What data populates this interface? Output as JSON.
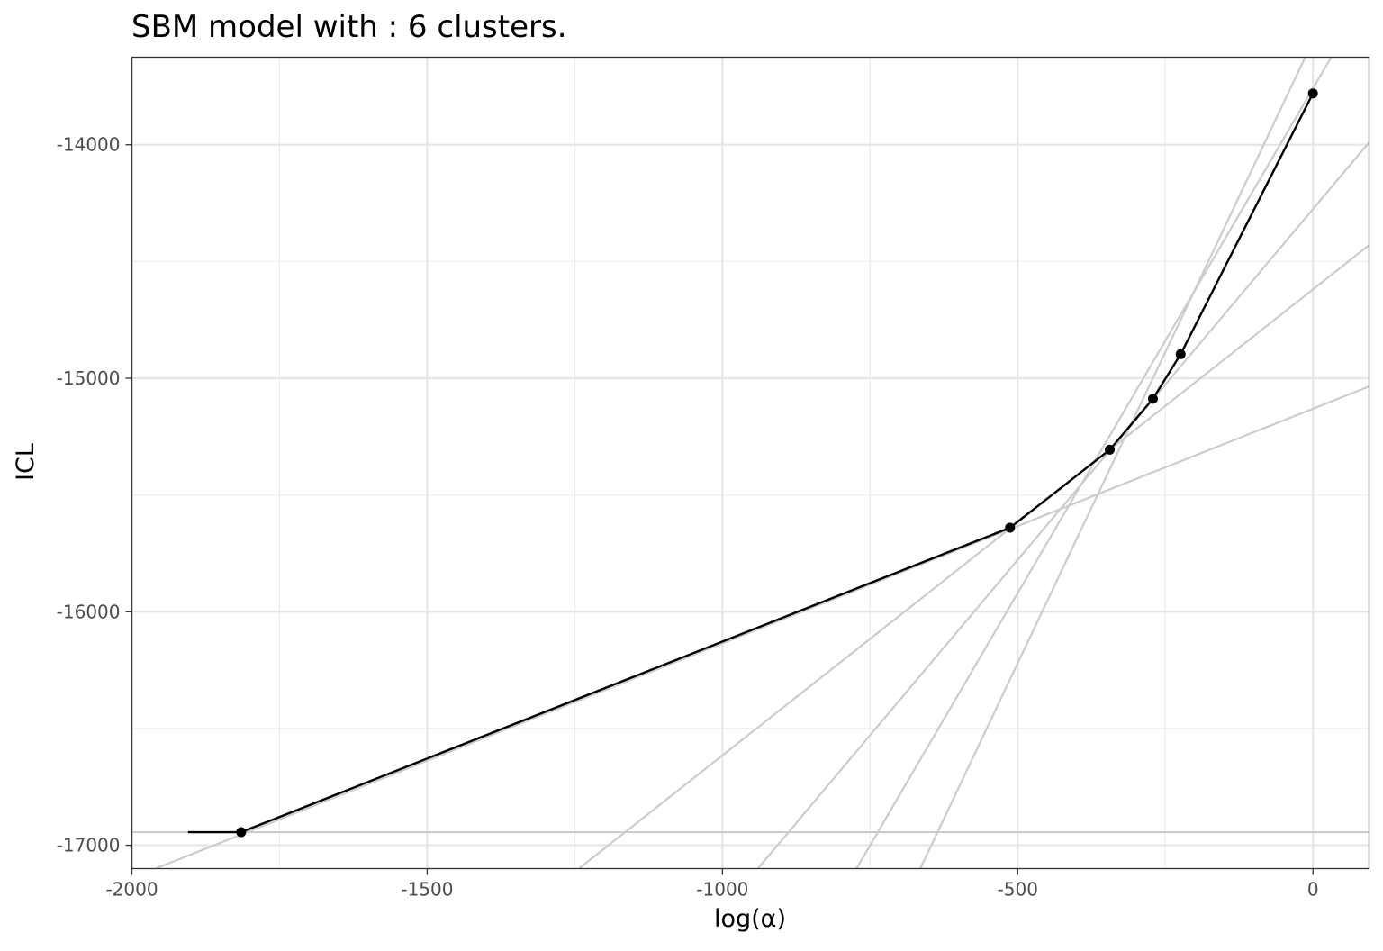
{
  "chart_data": {
    "type": "line",
    "title": "SBM model with : 6 clusters.",
    "xlabel": "log(α)",
    "ylabel": "ICL",
    "xlim": [
      -2000,
      95
    ],
    "ylim": [
      -17100,
      -13625
    ],
    "x_ticks": [
      -2000,
      -1500,
      -1000,
      -500,
      0
    ],
    "x_tick_labels": [
      "-2000",
      "-1500",
      "-1000",
      "-500",
      "0"
    ],
    "y_ticks": [
      -17000,
      -16000,
      -15000,
      -14000
    ],
    "y_tick_labels": [
      "-17000",
      "-16000",
      "-15000",
      "-14000"
    ],
    "grid": true,
    "series": [
      {
        "role": "path",
        "color": "#000000",
        "x": [
          -1905,
          -1815,
          -513,
          -344,
          -271,
          -224,
          0
        ],
        "y": [
          -16944,
          -16944,
          -15640,
          -15306,
          -15088,
          -14897,
          -13780
        ]
      }
    ],
    "points": {
      "color": "#000000",
      "x": [
        -1815,
        -513,
        -344,
        -271,
        -224,
        0
      ],
      "y": [
        -16944,
        -15640,
        -15306,
        -15088,
        -14897,
        -13780
      ]
    },
    "background_lines": {
      "color": "#cccccc",
      "segments": [
        {
          "x": [
            -2000,
            95
          ],
          "y": [
            -16944,
            -16944
          ]
        },
        {
          "x": [
            -1960,
            95
          ],
          "y": [
            -17100,
            -15035
          ]
        },
        {
          "x": [
            -1243,
            95
          ],
          "y": [
            -17100,
            -14430
          ]
        },
        {
          "x": [
            -940,
            95
          ],
          "y": [
            -17100,
            -13990
          ]
        },
        {
          "x": [
            -773,
            31
          ],
          "y": [
            -17100,
            -13625
          ]
        },
        {
          "x": [
            -665,
            -13
          ],
          "y": [
            -17100,
            -13625
          ]
        }
      ]
    }
  }
}
